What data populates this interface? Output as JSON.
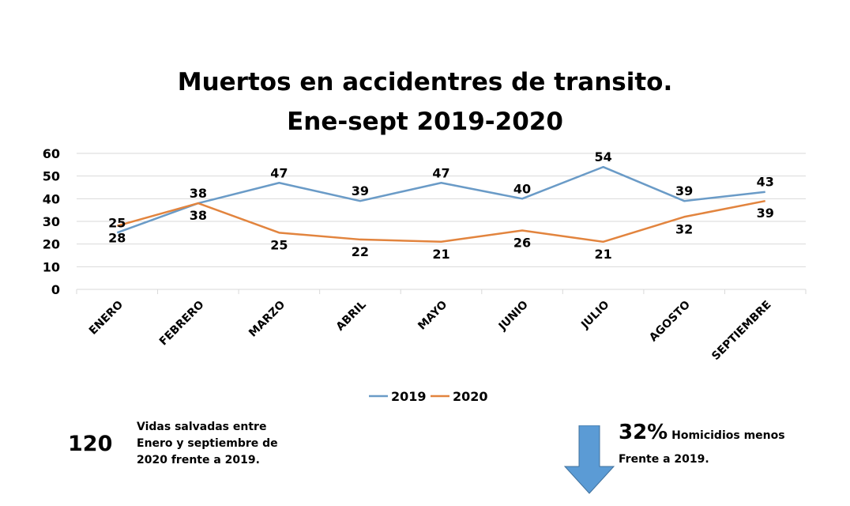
{
  "chart_data": {
    "type": "line",
    "title_line1": "Muertos en accidentres de transito.",
    "title_line2": "Ene-sept 2019-2020",
    "categories": [
      "ENERO",
      "FEBRERO",
      "MARZO",
      "ABRIL",
      "MAYO",
      "JUNIO",
      "JULIO",
      "AGOSTO",
      "SEPTIEMBRE"
    ],
    "series": [
      {
        "name": "2019",
        "color": "#6a9bc7",
        "values": [
          25,
          38,
          47,
          39,
          47,
          40,
          54,
          39,
          43
        ]
      },
      {
        "name": "2020",
        "color": "#e2843e",
        "values": [
          28,
          38,
          25,
          22,
          21,
          26,
          21,
          32,
          39
        ]
      }
    ],
    "ylim": [
      0,
      60
    ],
    "yticks": [
      0,
      10,
      20,
      30,
      40,
      50,
      60
    ],
    "grid": true,
    "legend_position": "bottom"
  },
  "stats": {
    "saved_number": "120",
    "saved_text": "Vidas salvadas entre Enero y septiembre de 2020 frente a 2019.",
    "percent": "32%",
    "percent_text_1": "Homicidios menos",
    "percent_text_2": "Frente a 2019.",
    "arrow_color": "#5b9bd5",
    "arrow_icon": "arrow-down-icon"
  }
}
